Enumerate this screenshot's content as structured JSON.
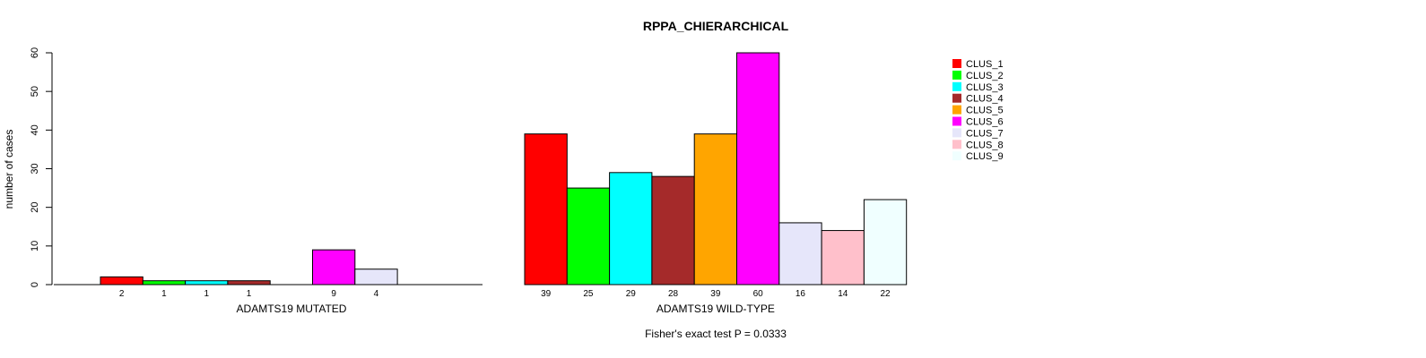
{
  "chart_data": {
    "type": "bar",
    "title": "RPPA_CHIERARCHICAL",
    "ylabel": "number of cases",
    "ylim": [
      0,
      60
    ],
    "yticks": [
      0,
      10,
      20,
      30,
      40,
      50,
      60
    ],
    "footnote": "Fisher's exact test P = 0.0333",
    "legend_position": "top-right",
    "series": [
      {
        "name": "CLUS_1",
        "color": "#ff0000"
      },
      {
        "name": "CLUS_2",
        "color": "#00ff00"
      },
      {
        "name": "CLUS_3",
        "color": "#00ffff"
      },
      {
        "name": "CLUS_4",
        "color": "#a52a2a"
      },
      {
        "name": "CLUS_5",
        "color": "#ffa500"
      },
      {
        "name": "CLUS_6",
        "color": "#ff00ff"
      },
      {
        "name": "CLUS_7",
        "color": "#e6e6fa"
      },
      {
        "name": "CLUS_8",
        "color": "#ffc0cb"
      },
      {
        "name": "CLUS_9",
        "color": "#f0ffff"
      }
    ],
    "groups": [
      {
        "label": "ADAMTS19 MUTATED",
        "values": [
          2,
          1,
          1,
          1,
          0,
          9,
          4,
          0,
          0
        ],
        "count_labels": [
          "2",
          "1",
          "1",
          "1",
          "",
          "9",
          "4",
          "",
          ""
        ]
      },
      {
        "label": "ADAMTS19 WILD-TYPE",
        "values": [
          39,
          25,
          29,
          28,
          39,
          60,
          16,
          14,
          22
        ],
        "count_labels": [
          "39",
          "25",
          "29",
          "28",
          "39",
          "60",
          "16",
          "14",
          "22"
        ]
      }
    ]
  }
}
